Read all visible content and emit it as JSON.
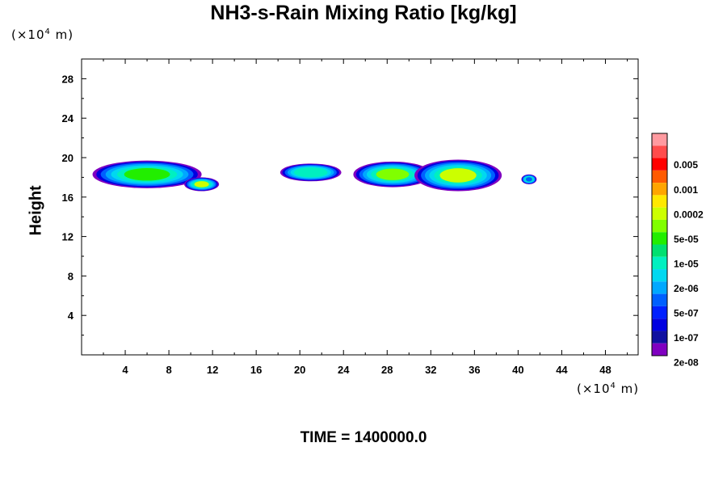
{
  "chart_data": {
    "type": "heatmap",
    "title": "NH3-s-Rain Mixing Ratio [kg/kg]",
    "ylabel": "Height",
    "xlabel": "",
    "x_unit": {
      "prefix": "(×10",
      "exp": "4",
      "suffix": " m)"
    },
    "y_unit": {
      "prefix": "(×10",
      "exp": "4",
      "suffix": " m)"
    },
    "xlim": [
      0,
      51
    ],
    "ylim": [
      0,
      30
    ],
    "xticks": [
      4,
      8,
      12,
      16,
      20,
      24,
      28,
      32,
      36,
      40,
      44,
      48
    ],
    "yticks": [
      4,
      8,
      12,
      16,
      20,
      24,
      28
    ],
    "footer": "TIME = 1400000.0",
    "colorbar": {
      "levels": [
        "",
        "0.005",
        "0.001",
        "0.0002",
        "5e-05",
        "1e-05",
        "2e-06",
        "5e-07",
        "1e-07",
        "2e-08"
      ],
      "colors": [
        "#ff9aa0",
        "#ff4c4c",
        "#ff0000",
        "#ff5a00",
        "#ffa500",
        "#ffe800",
        "#ccff00",
        "#80ff00",
        "#22ee00",
        "#00e070",
        "#00f0c0",
        "#00d8f0",
        "#00a8ff",
        "#0060ff",
        "#0020ff",
        "#0000e0",
        "#1010a0",
        "#8000c0"
      ]
    },
    "cloud_blobs": [
      {
        "x": 6.0,
        "y": 18.3,
        "rx": 5.0,
        "ry": 1.4,
        "core": "#22ee00"
      },
      {
        "x": 11.0,
        "y": 17.3,
        "rx": 1.6,
        "ry": 0.7,
        "core": "#ccff00"
      },
      {
        "x": 21.0,
        "y": 18.5,
        "rx": 2.8,
        "ry": 0.9,
        "core": "#00f0c0"
      },
      {
        "x": 28.5,
        "y": 18.3,
        "rx": 3.6,
        "ry": 1.3,
        "core": "#80ff00"
      },
      {
        "x": 34.5,
        "y": 18.2,
        "rx": 4.0,
        "ry": 1.6,
        "core": "#ccff00"
      },
      {
        "x": 41.0,
        "y": 17.8,
        "rx": 0.7,
        "ry": 0.5,
        "core": "#0060ff"
      }
    ]
  }
}
